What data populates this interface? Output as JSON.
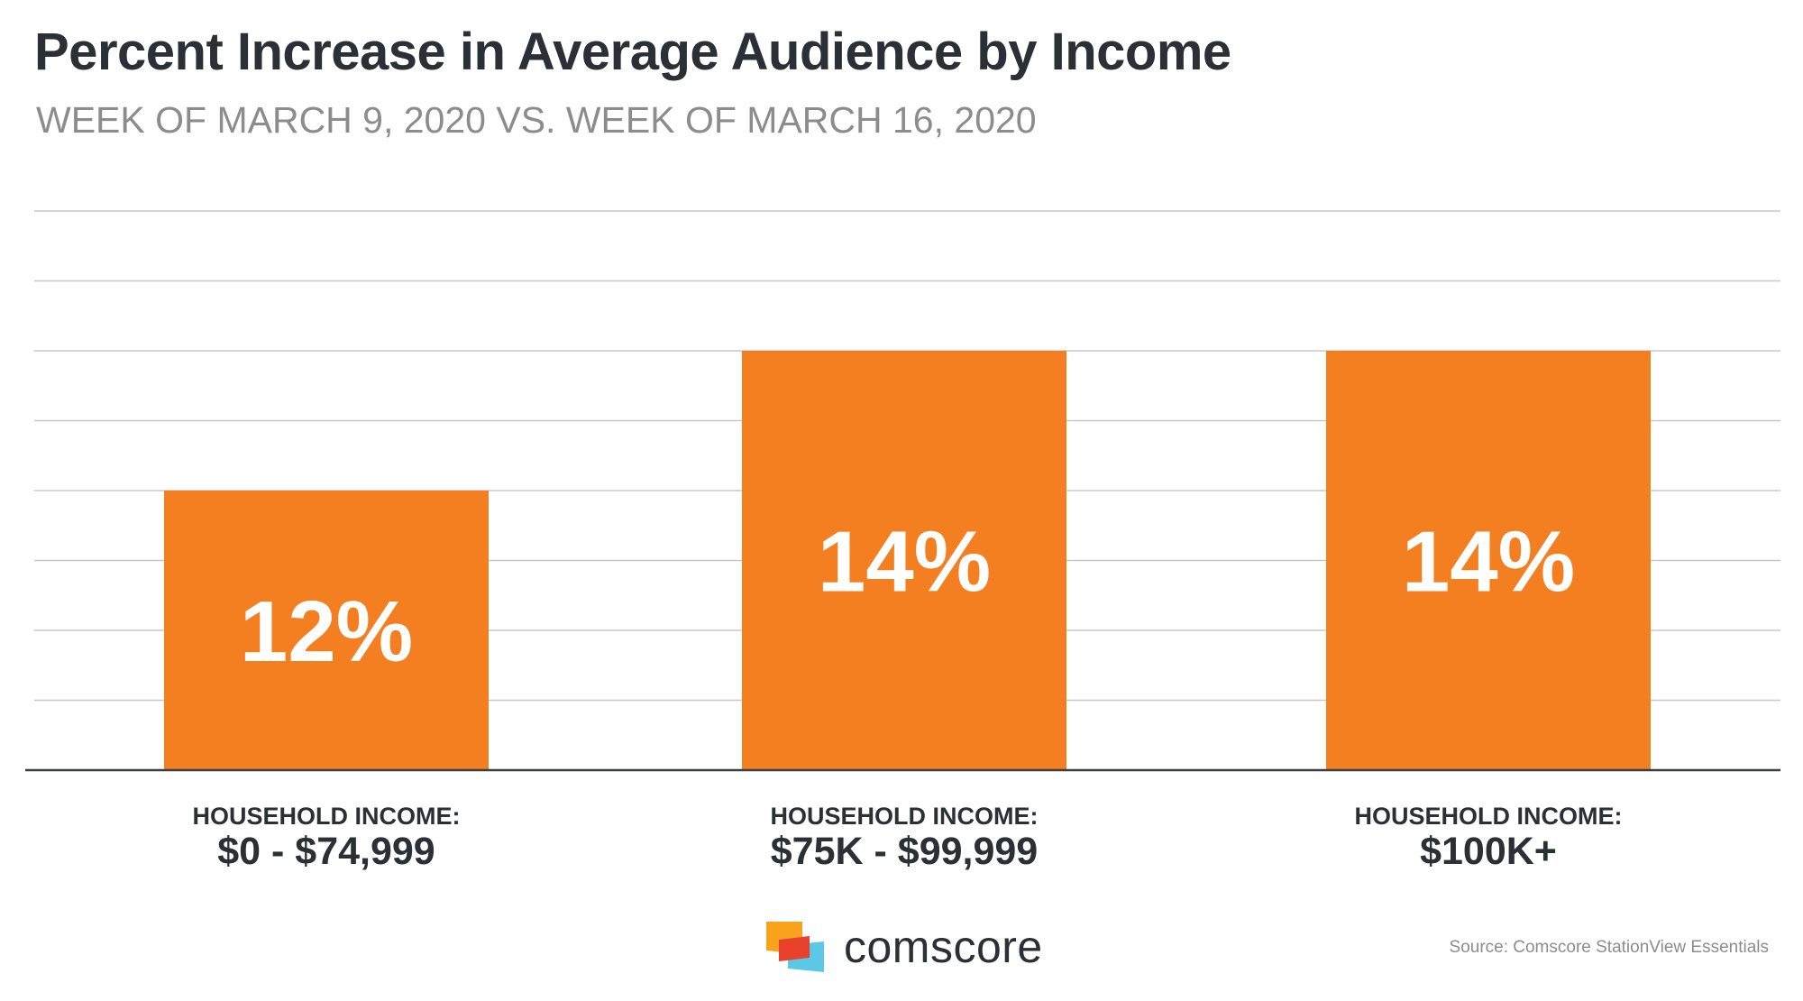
{
  "chart_data": {
    "type": "bar",
    "title": "Percent Increase in Average Audience by Income",
    "subtitle": "WEEK OF MARCH 9, 2020 VS. WEEK OF MARCH 16, 2020",
    "categories": [
      {
        "line1": "HOUSEHOLD INCOME:",
        "line2": "$0 - $74,999"
      },
      {
        "line1": "HOUSEHOLD INCOME:",
        "line2": "$75K - $99,999"
      },
      {
        "line1": "HOUSEHOLD INCOME:",
        "line2": "$100K+"
      }
    ],
    "values": [
      12,
      14,
      14
    ],
    "data_labels": [
      "12%",
      "14%",
      "14%"
    ],
    "ylim": [
      8,
      16
    ],
    "grid": true,
    "xlabel": "",
    "ylabel": "",
    "bar_color": "#f47f20",
    "grid_color": "#c8c8c8",
    "axis_color": "#3a3f45",
    "label_color": "#2b2f36",
    "data_label_color": "#ffffff"
  },
  "brand": {
    "logo_text": "comscore",
    "logo_colors": [
      "#f9a21b",
      "#e8412c",
      "#5bc8e6"
    ]
  },
  "source": "Source: Comscore StationView Essentials"
}
